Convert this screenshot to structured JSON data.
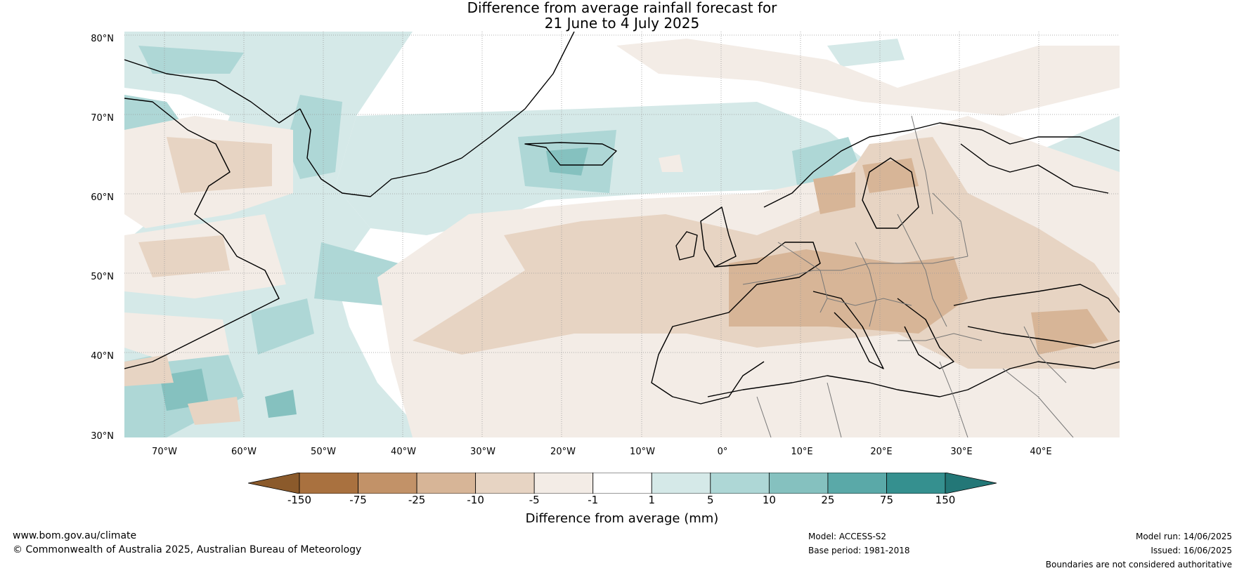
{
  "title": {
    "line1": "Difference from average rainfall forecast for",
    "line2": "21 June to 4 July 2025"
  },
  "map": {
    "lat_labels": [
      "80°N",
      "70°N",
      "60°N",
      "50°N",
      "40°N",
      "30°N"
    ],
    "lon_labels": [
      "70°W",
      "60°W",
      "50°W",
      "40°W",
      "30°W",
      "20°W",
      "10°W",
      "0°",
      "10°E",
      "20°E",
      "30°E",
      "40°E"
    ]
  },
  "colorbar": {
    "title": "Difference from average (mm)",
    "ticks": [
      "-150",
      "-75",
      "-25",
      "-10",
      "-5",
      "-1",
      "1",
      "5",
      "10",
      "25",
      "75",
      "150"
    ],
    "colors": [
      "#8b5a2b",
      "#a9713f",
      "#c29268",
      "#d7b597",
      "#e7d4c3",
      "#f3ece6",
      "#ffffff",
      "#d5e9e8",
      "#aed7d6",
      "#85c1bf",
      "#5aa9a8",
      "#35908f",
      "#237777"
    ]
  },
  "footer": {
    "website": "www.bom.gov.au/climate",
    "copyright": "© Commonwealth of Australia 2025, Australian Bureau of Meteorology",
    "model": "Model: ACCESS-S2",
    "base_period": "Base period: 1981-2018",
    "model_run": "Model run: 14/06/2025",
    "issued": "Issued: 16/06/2025",
    "disclaimer": "Boundaries are not considered authoritative"
  }
}
